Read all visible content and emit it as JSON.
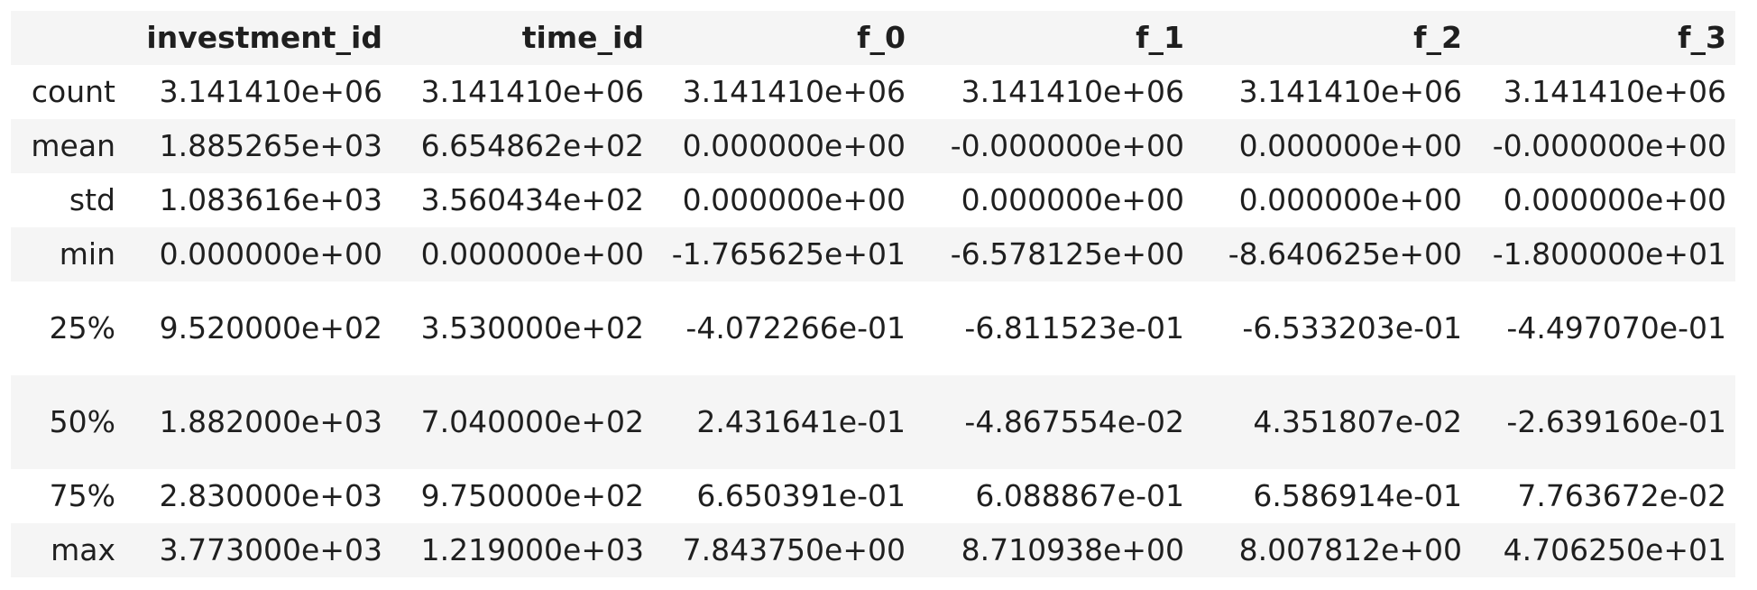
{
  "table": {
    "corner": "",
    "columns": [
      "investment_id",
      "time_id",
      "f_0",
      "f_1",
      "f_2",
      "f_3"
    ],
    "rows": [
      {
        "label": "count",
        "cells": [
          "3.141410e+06",
          "3.141410e+06",
          "3.141410e+06",
          "3.141410e+06",
          "3.141410e+06",
          "3.141410e+06"
        ]
      },
      {
        "label": "mean",
        "cells": [
          "1.885265e+03",
          "6.654862e+02",
          "0.000000e+00",
          "-0.000000e+00",
          "0.000000e+00",
          "-0.000000e+00"
        ]
      },
      {
        "label": "std",
        "cells": [
          "1.083616e+03",
          "3.560434e+02",
          "0.000000e+00",
          "0.000000e+00",
          "0.000000e+00",
          "0.000000e+00"
        ]
      },
      {
        "label": "min",
        "cells": [
          "0.000000e+00",
          "0.000000e+00",
          "-1.765625e+01",
          "-6.578125e+00",
          "-8.640625e+00",
          "-1.800000e+01"
        ]
      },
      {
        "label": "25%",
        "cells": [
          "9.520000e+02",
          "3.530000e+02",
          "-4.072266e-01",
          "-6.811523e-01",
          "-6.533203e-01",
          "-4.497070e-01"
        ]
      },
      {
        "label": "50%",
        "cells": [
          "1.882000e+03",
          "7.040000e+02",
          "2.431641e-01",
          "-4.867554e-02",
          "4.351807e-02",
          "-2.639160e-01"
        ]
      },
      {
        "label": "75%",
        "cells": [
          "2.830000e+03",
          "9.750000e+02",
          "6.650391e-01",
          "6.088867e-01",
          "6.586914e-01",
          "7.763672e-02"
        ]
      },
      {
        "label": "max",
        "cells": [
          "3.773000e+03",
          "1.219000e+03",
          "7.843750e+00",
          "8.710938e+00",
          "8.007812e+00",
          "4.706250e+01"
        ]
      }
    ]
  }
}
